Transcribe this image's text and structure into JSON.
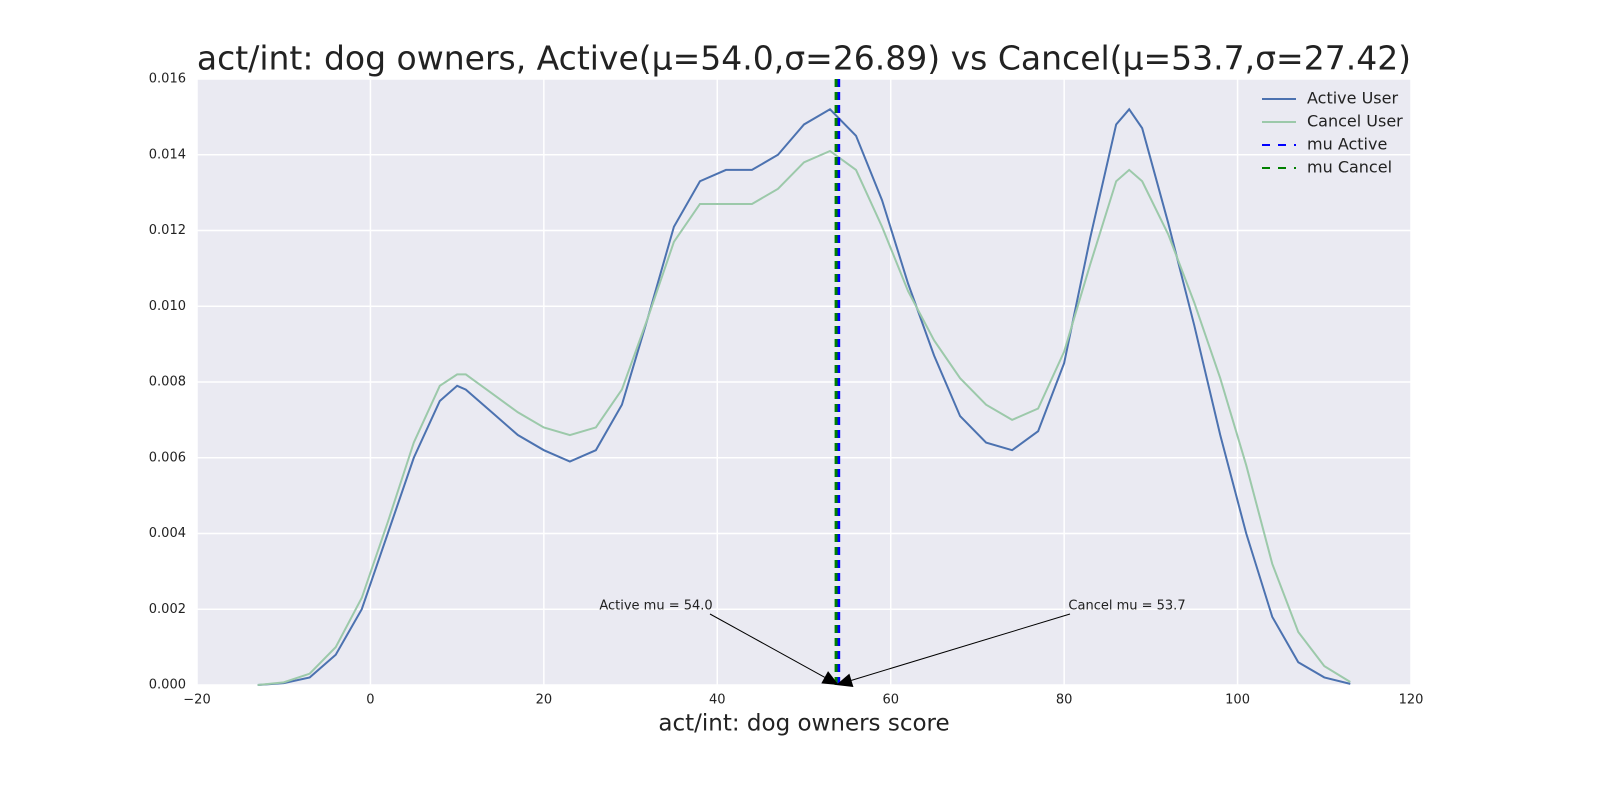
{
  "chart_data": {
    "type": "line",
    "title": "act/int: dog owners, Active(μ=54.0,σ=26.89) vs Cancel(μ=53.7,σ=27.42)",
    "x_label": "act/int: dog owners score",
    "x": [
      -13,
      -10,
      -7,
      -4,
      -1,
      2,
      5,
      8,
      10,
      11,
      14,
      17,
      20,
      23,
      26,
      29,
      32,
      35,
      38,
      41,
      44,
      47,
      50,
      53,
      56,
      59,
      62,
      65,
      68,
      71,
      74,
      77,
      80,
      83,
      86,
      87.5,
      89,
      92,
      95,
      98,
      101,
      104,
      107,
      110,
      113
    ],
    "series": [
      {
        "name": "Active User",
        "color": "#4c72b0",
        "values": [
          0.0,
          5e-05,
          0.0002,
          0.0008,
          0.002,
          0.004,
          0.006,
          0.0075,
          0.0079,
          0.0078,
          0.0072,
          0.0066,
          0.0062,
          0.0059,
          0.0062,
          0.0074,
          0.0097,
          0.0121,
          0.0133,
          0.0136,
          0.0136,
          0.014,
          0.0148,
          0.0152,
          0.0145,
          0.0128,
          0.0106,
          0.0087,
          0.0071,
          0.0064,
          0.0062,
          0.0067,
          0.0085,
          0.0118,
          0.0148,
          0.0152,
          0.0147,
          0.0122,
          0.0095,
          0.0066,
          0.004,
          0.0018,
          0.0006,
          0.0002,
          3e-05
        ]
      },
      {
        "name": "Cancel User",
        "color": "#9cc9aa",
        "values": [
          0.0,
          7e-05,
          0.0003,
          0.001,
          0.0023,
          0.0043,
          0.0064,
          0.0079,
          0.0082,
          0.0082,
          0.0077,
          0.0072,
          0.0068,
          0.0066,
          0.0068,
          0.0078,
          0.0097,
          0.0117,
          0.0127,
          0.0127,
          0.0127,
          0.0131,
          0.0138,
          0.0141,
          0.0136,
          0.0121,
          0.0104,
          0.0091,
          0.0081,
          0.0074,
          0.007,
          0.0073,
          0.0088,
          0.0111,
          0.0133,
          0.0136,
          0.0133,
          0.0119,
          0.0101,
          0.0081,
          0.0058,
          0.0032,
          0.0014,
          0.0005,
          8e-05
        ]
      }
    ],
    "vlines": [
      {
        "name": "mu Active",
        "value": 54.0,
        "color": "#0000ff",
        "annotation": "Active mu = 54.0"
      },
      {
        "name": "mu Cancel",
        "value": 53.7,
        "color": "#008000",
        "annotation": "Cancel mu = 53.7"
      }
    ],
    "xlim": [
      -20,
      120
    ],
    "xticks": [
      {
        "value": -20,
        "label": "−20"
      },
      0,
      20,
      40,
      60,
      80,
      100,
      120
    ],
    "ylim": [
      0,
      0.016
    ],
    "yticks": [
      {
        "value": 0,
        "label": "0.000"
      },
      {
        "value": 0.002,
        "label": "0.002"
      },
      {
        "value": 0.004,
        "label": "0.004"
      },
      {
        "value": 0.006,
        "label": "0.006"
      },
      {
        "value": 0.008,
        "label": "0.008"
      },
      {
        "value": 0.01,
        "label": "0.010"
      },
      {
        "value": 0.012,
        "label": "0.012"
      },
      {
        "value": 0.014,
        "label": "0.014"
      },
      {
        "value": 0.016,
        "label": "0.016"
      }
    ],
    "grid": true,
    "legend": "upper right"
  }
}
